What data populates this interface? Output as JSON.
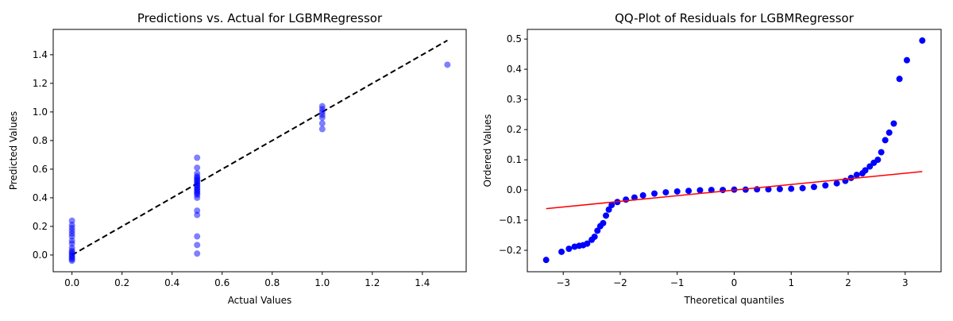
{
  "chart_data": [
    {
      "type": "scatter",
      "title": "Predictions vs. Actual for LGBMRegressor",
      "x_label": "Actual Values",
      "y_label": "Predicted Values",
      "x": [
        0,
        0,
        0,
        0,
        0,
        0,
        0,
        0,
        0,
        0,
        0,
        0,
        0,
        0,
        0,
        0,
        0,
        0.5,
        0.5,
        0.5,
        0.5,
        0.5,
        0.5,
        0.5,
        0.5,
        0.5,
        0.5,
        0.5,
        0.5,
        0.5,
        0.5,
        0.5,
        0.5,
        0.5,
        0.5,
        0.5,
        0.5,
        0.5,
        0.5,
        0.5,
        1,
        1,
        1,
        1,
        1,
        1,
        1,
        1.5
      ],
      "values": [
        -0.04,
        -0.03,
        -0.02,
        -0.01,
        0,
        0.01,
        0.02,
        0.03,
        0.05,
        0.08,
        0.1,
        0.13,
        0.15,
        0.17,
        0.19,
        0.21,
        0.24,
        0.01,
        0.07,
        0.13,
        0.28,
        0.31,
        0.4,
        0.42,
        0.43,
        0.44,
        0.45,
        0.46,
        0.47,
        0.48,
        0.49,
        0.5,
        0.51,
        0.52,
        0.53,
        0.54,
        0.55,
        0.57,
        0.61,
        0.68,
        0.88,
        0.92,
        0.96,
        0.98,
        1.0,
        1.02,
        1.04,
        1.33
      ],
      "color": "#0000ff",
      "opacity": 0.5,
      "line": {
        "x": [
          0,
          1.5
        ],
        "y": [
          0,
          1.5
        ],
        "color": "#000000",
        "style": "dashed"
      },
      "xlim": [
        -0.075,
        1.575
      ],
      "ylim": [
        -0.117,
        1.577
      ],
      "xticks": [
        {
          "value": 0,
          "label": "0.0"
        },
        0.2,
        0.4,
        0.6,
        0.8,
        {
          "value": 1,
          "label": "1.0"
        },
        1.2,
        1.4
      ],
      "yticks": [
        {
          "value": 0,
          "label": "0.0"
        },
        0.2,
        0.4,
        0.6,
        0.8,
        {
          "value": 1,
          "label": "1.0"
        },
        1.2,
        1.4
      ]
    },
    {
      "type": "scatter",
      "title": "QQ-Plot of Residuals for LGBMRegressor",
      "x_label": "Theoretical quantiles",
      "y_label": "Ordered Values",
      "x": [
        -3.3,
        -3.03,
        -2.9,
        -2.8,
        -2.72,
        -2.65,
        -2.58,
        -2.5,
        -2.45,
        -2.4,
        -2.35,
        -2.3,
        -2.25,
        -2.2,
        -2.15,
        -2.05,
        -1.9,
        -1.75,
        -1.6,
        -1.4,
        -1.2,
        -1.0,
        -0.8,
        -0.6,
        -0.4,
        -0.2,
        0,
        0.2,
        0.4,
        0.6,
        0.8,
        1.0,
        1.2,
        1.4,
        1.6,
        1.8,
        1.95,
        2.05,
        2.15,
        2.25,
        2.3,
        2.38,
        2.45,
        2.52,
        2.58,
        2.65,
        2.72,
        2.8,
        2.9,
        3.03,
        3.3
      ],
      "values": [
        -0.232,
        -0.205,
        -0.195,
        -0.188,
        -0.185,
        -0.183,
        -0.178,
        -0.165,
        -0.155,
        -0.135,
        -0.12,
        -0.11,
        -0.085,
        -0.065,
        -0.05,
        -0.04,
        -0.032,
        -0.025,
        -0.018,
        -0.012,
        -0.008,
        -0.005,
        -0.003,
        -0.001,
        0,
        0,
        0.001,
        0.001,
        0.002,
        0.002,
        0.003,
        0.004,
        0.006,
        0.01,
        0.015,
        0.022,
        0.03,
        0.04,
        0.05,
        0.055,
        0.065,
        0.078,
        0.09,
        0.1,
        0.125,
        0.165,
        0.19,
        0.22,
        0.368,
        0.43,
        0.495
      ],
      "color": "#0000ff",
      "opacity": 1,
      "line": {
        "x": [
          -3.3,
          3.3
        ],
        "y": [
          -0.062,
          0.061
        ],
        "color": "#ff0000",
        "style": "solid"
      },
      "xlim": [
        -3.63,
        3.63
      ],
      "ylim": [
        -0.271,
        0.532
      ],
      "xticks": [
        {
          "value": -3,
          "label": "−3"
        },
        {
          "value": -2,
          "label": "−2"
        },
        {
          "value": -1,
          "label": "−1"
        },
        0,
        1,
        2,
        3
      ],
      "yticks": [
        {
          "value": -0.2,
          "label": "−0.2"
        },
        {
          "value": -0.1,
          "label": "−0.1"
        },
        {
          "value": 0,
          "label": "0.0"
        },
        0.1,
        0.2,
        0.3,
        0.4,
        0.5
      ]
    }
  ]
}
